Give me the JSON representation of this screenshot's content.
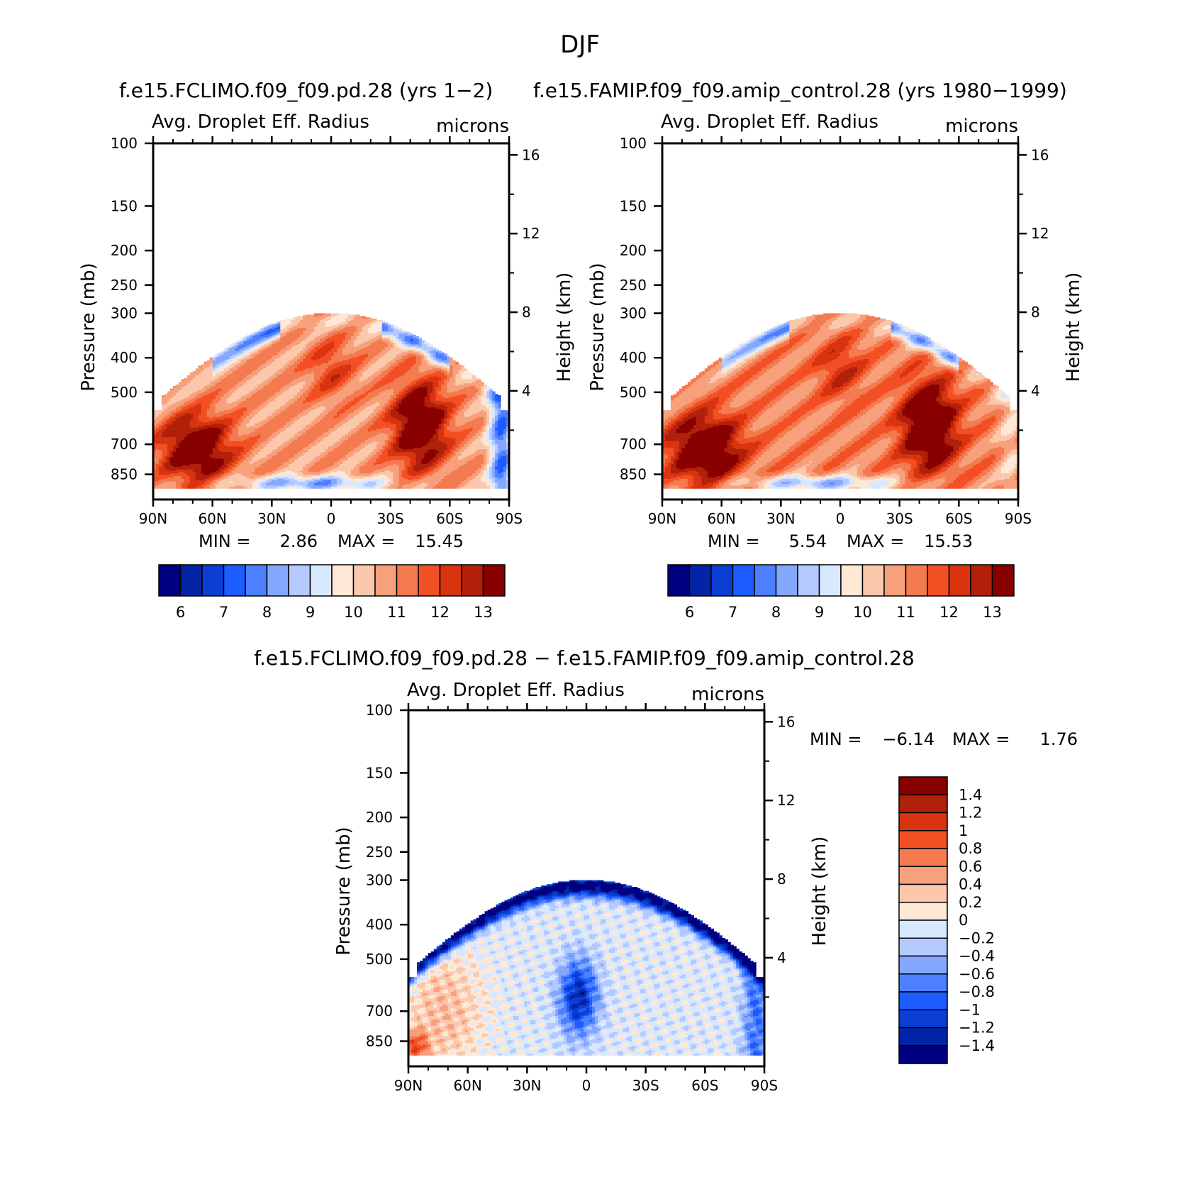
{
  "title": "DJF",
  "chart_data": [
    {
      "type": "heatmap",
      "id": "p1",
      "title": "f.e15.FCLIMO.f09_f09.pd.28 (yrs 1−2)",
      "subtitle": "Avg. Droplet Eff. Radius",
      "units": "microns",
      "ylabel": "Pressure (mb)",
      "ylabel_right": "Height (km)",
      "x_ticks": [
        "90N",
        "60N",
        "30N",
        "0",
        "30S",
        "60S",
        "90S"
      ],
      "y_ticks": [
        100,
        150,
        200,
        250,
        300,
        400,
        500,
        700,
        850
      ],
      "y_ticks_right": [
        16,
        12,
        8,
        4
      ],
      "min_label": "MIN =",
      "min_value": "2.86",
      "max_label": "MAX =",
      "max_value": "15.45",
      "colorbar": {
        "orientation": "horizontal",
        "labels": [
          "6",
          "7",
          "8",
          "9",
          "10",
          "11",
          "12",
          "13"
        ],
        "colors": [
          "#000080",
          "#0424a8",
          "#0b3fd4",
          "#1d5cff",
          "#4c80ff",
          "#85a8ff",
          "#b3c9ff",
          "#d8e8ff",
          "#fee8d6",
          "#fbc8ac",
          "#f7a07c",
          "#f47a50",
          "#f25024",
          "#d83410",
          "#b0200a",
          "#880000"
        ]
      }
    },
    {
      "type": "heatmap",
      "id": "p2",
      "title": "f.e15.FAMIP.f09_f09.amip_control.28 (yrs 1980−1999)",
      "subtitle": "Avg. Droplet Eff. Radius",
      "units": "microns",
      "ylabel": "Pressure (mb)",
      "ylabel_right": "Height (km)",
      "x_ticks": [
        "90N",
        "60N",
        "30N",
        "0",
        "30S",
        "60S",
        "90S"
      ],
      "y_ticks": [
        100,
        150,
        200,
        250,
        300,
        400,
        500,
        700,
        850
      ],
      "y_ticks_right": [
        16,
        12,
        8,
        4
      ],
      "min_label": "MIN =",
      "min_value": "5.54",
      "max_label": "MAX =",
      "max_value": "15.53",
      "colorbar": {
        "orientation": "horizontal",
        "labels": [
          "6",
          "7",
          "8",
          "9",
          "10",
          "11",
          "12",
          "13"
        ],
        "colors": [
          "#000080",
          "#0424a8",
          "#0b3fd4",
          "#1d5cff",
          "#4c80ff",
          "#85a8ff",
          "#b3c9ff",
          "#d8e8ff",
          "#fee8d6",
          "#fbc8ac",
          "#f7a07c",
          "#f47a50",
          "#f25024",
          "#d83410",
          "#b0200a",
          "#880000"
        ]
      }
    },
    {
      "type": "heatmap",
      "id": "p3",
      "title": "f.e15.FCLIMO.f09_f09.pd.28 − f.e15.FAMIP.f09_f09.amip_control.28",
      "subtitle": "Avg. Droplet Eff. Radius",
      "units": "microns",
      "ylabel": "Pressure (mb)",
      "ylabel_right": "Height (km)",
      "x_ticks": [
        "90N",
        "60N",
        "30N",
        "0",
        "30S",
        "60S",
        "90S"
      ],
      "y_ticks": [
        100,
        150,
        200,
        250,
        300,
        400,
        500,
        700,
        850
      ],
      "y_ticks_right": [
        16,
        12,
        8,
        4
      ],
      "min_label": "MIN =",
      "min_value": "−6.14",
      "max_label": "MAX =",
      "max_value": "1.76",
      "colorbar": {
        "orientation": "vertical",
        "labels": [
          "1.4",
          "1.2",
          "1",
          "0.8",
          "0.6",
          "0.4",
          "0.2",
          "0",
          "−0.2",
          "−0.4",
          "−0.6",
          "−0.8",
          "−1",
          "−1.2",
          "−1.4"
        ],
        "colors": [
          "#880000",
          "#b0200a",
          "#d83410",
          "#f25024",
          "#f47a50",
          "#f7a07c",
          "#fbc8ac",
          "#fee8d6",
          "#d8e8ff",
          "#b3c9ff",
          "#85a8ff",
          "#4c80ff",
          "#1d5cff",
          "#0b3fd4",
          "#0424a8",
          "#000080"
        ]
      }
    }
  ]
}
